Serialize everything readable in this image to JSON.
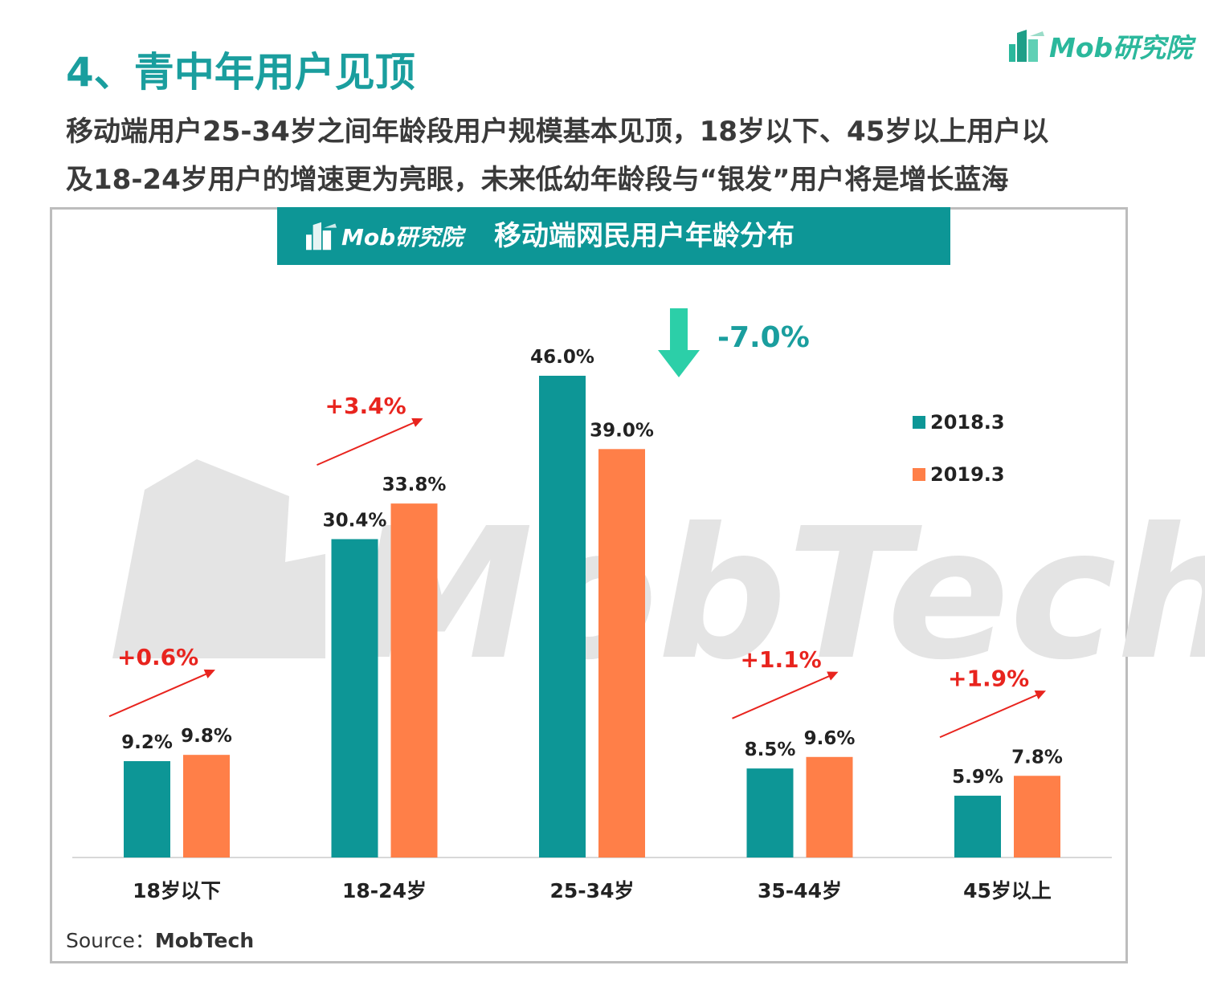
{
  "header": {
    "title": "4、青中年用户见顶",
    "subtitle_line1": "移动端用户25-34岁之间年龄段用户规模基本见顶，18岁以下、45岁以上用户以",
    "subtitle_line2": "及18-24岁用户的增速更为亮眼，未来低幼年龄段与“银发”用户将是增长蓝海"
  },
  "brand": {
    "logo_text": "Mob研究院",
    "watermark": "MobTech"
  },
  "colors": {
    "teal": "#0d9696",
    "orange": "#ff7f48",
    "change_up": "#e8241e",
    "change_down": "#2ccfa8",
    "change_down_text": "#1a9e9e"
  },
  "chart_data": {
    "type": "bar",
    "title": "移动端网民用户年龄分布",
    "categories": [
      "18岁以下",
      "18-24岁",
      "25-34岁",
      "35-44岁",
      "45岁以上"
    ],
    "series": [
      {
        "name": "2018.3",
        "values": [
          9.2,
          30.4,
          46.0,
          8.5,
          5.9
        ]
      },
      {
        "name": "2019.3",
        "values": [
          9.8,
          33.8,
          39.0,
          9.6,
          7.8
        ]
      }
    ],
    "value_labels": [
      [
        "9.2%",
        "30.4%",
        "46.0%",
        "8.5%",
        "5.9%"
      ],
      [
        "9.8%",
        "33.8%",
        "39.0%",
        "9.6%",
        "7.8%"
      ]
    ],
    "changes": [
      "+0.6%",
      "+3.4%",
      "-7.0%",
      "+1.1%",
      "+1.9%"
    ],
    "change_directions": [
      "up",
      "up",
      "down",
      "up",
      "up"
    ],
    "unit": "%",
    "ylim": [
      0,
      50
    ],
    "grid": false,
    "legend_position": "right"
  },
  "footer": {
    "source_label": "Source：",
    "source_value": "MobTech"
  }
}
